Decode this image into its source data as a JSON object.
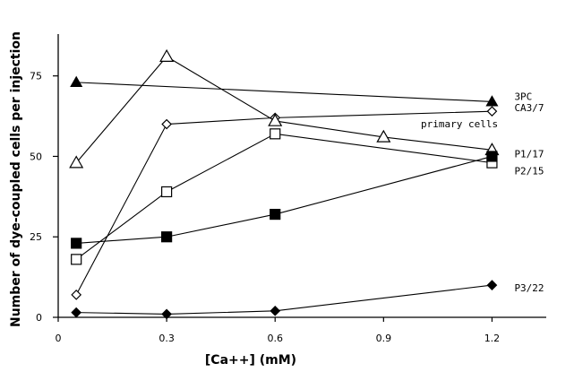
{
  "chart_data": {
    "type": "line",
    "title": "",
    "xlabel": "[Ca++] (mM)",
    "ylabel": "Number of dye-coupled cells per injection",
    "xlim": [
      0,
      1.35
    ],
    "ylim": [
      0,
      88
    ],
    "xticks": [
      0,
      0.3,
      0.6,
      0.9,
      1.2
    ],
    "xtick_labels": [
      "0",
      "0.3",
      "0.6",
      "0.9",
      "1.2"
    ],
    "yticks": [
      0,
      25,
      50,
      75
    ],
    "ytick_labels": [
      "0",
      "25",
      "50",
      "75"
    ],
    "grid": false,
    "annotation": "primary cells",
    "series": [
      {
        "name": "3PC",
        "marker": "filled-triangle",
        "x": [
          0.05,
          1.2
        ],
        "y": [
          73,
          67
        ]
      },
      {
        "name": "CA3/7",
        "marker": "open-diamond",
        "x": [
          0.05,
          0.3,
          0.6,
          1.2
        ],
        "y": [
          7,
          60,
          62,
          64
        ]
      },
      {
        "name": "P1/17",
        "marker": "open-triangle",
        "x": [
          0.05,
          0.3,
          0.6,
          0.9,
          1.2
        ],
        "y": [
          48,
          81,
          61,
          56,
          52
        ]
      },
      {
        "name": "P2/15",
        "marker": "open-square",
        "x": [
          0.05,
          0.3,
          0.6,
          1.2
        ],
        "y": [
          18,
          39,
          57,
          48
        ]
      },
      {
        "name": "",
        "marker": "filled-square",
        "x": [
          0.05,
          0.3,
          0.6,
          1.2
        ],
        "y": [
          23,
          25,
          32,
          50
        ]
      },
      {
        "name": "P3/22",
        "marker": "filled-diamond",
        "x": [
          0.05,
          0.3,
          0.6,
          1.2
        ],
        "y": [
          1.5,
          1,
          2,
          10
        ]
      }
    ]
  }
}
